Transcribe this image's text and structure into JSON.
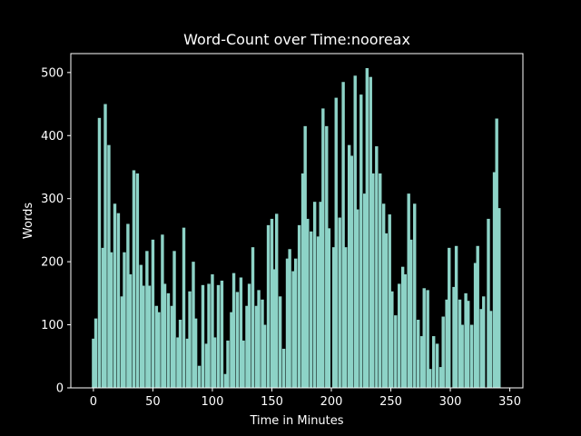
{
  "chart_data": {
    "type": "bar",
    "title": "Word-Count over Time:nooreax",
    "xlabel": "Time in Minutes",
    "ylabel": "Words",
    "color": "#8dd3c7",
    "x": [
      0,
      2,
      5,
      8,
      10,
      13,
      15,
      18,
      21,
      24,
      26,
      29,
      31,
      34,
      37,
      40,
      42,
      45,
      47,
      50,
      53,
      55,
      58,
      60,
      63,
      66,
      68,
      71,
      73,
      76,
      79,
      81,
      84,
      86,
      89,
      92,
      95,
      97,
      100,
      102,
      105,
      108,
      111,
      113,
      116,
      118,
      121,
      124,
      126,
      129,
      131,
      134,
      137,
      139,
      142,
      144,
      147,
      150,
      152,
      154,
      157,
      160,
      163,
      165,
      168,
      170,
      173,
      176,
      178,
      180,
      183,
      186,
      189,
      191,
      193,
      196,
      198,
      202,
      204,
      207,
      210,
      212,
      215,
      217,
      220,
      222,
      225,
      228,
      230,
      233,
      235,
      238,
      241,
      244,
      246,
      249,
      251,
      254,
      257,
      260,
      262,
      265,
      267,
      270,
      273,
      276,
      278,
      281,
      283,
      286,
      289,
      292,
      294,
      297,
      299,
      303,
      305,
      308,
      310,
      313,
      315,
      318,
      321,
      323,
      326,
      328,
      332,
      334,
      337,
      339,
      341
    ],
    "values": [
      78,
      110,
      428,
      222,
      450,
      385,
      215,
      292,
      277,
      145,
      215,
      260,
      180,
      345,
      340,
      195,
      162,
      217,
      162,
      235,
      130,
      120,
      243,
      165,
      150,
      130,
      217,
      80,
      108,
      254,
      78,
      153,
      200,
      110,
      35,
      163,
      70,
      165,
      180,
      80,
      163,
      170,
      22,
      75,
      120,
      182,
      152,
      175,
      75,
      130,
      165,
      223,
      130,
      155,
      140,
      100,
      258,
      268,
      188,
      276,
      145,
      62,
      205,
      220,
      185,
      205,
      258,
      340,
      415,
      268,
      248,
      295,
      240,
      295,
      443,
      415,
      253,
      223,
      460,
      270,
      485,
      223,
      385,
      368,
      495,
      283,
      465,
      308,
      507,
      493,
      340,
      383,
      340,
      292,
      245,
      275,
      153,
      115,
      165,
      192,
      180,
      308,
      235,
      292,
      108,
      82,
      158,
      155,
      30,
      82,
      70,
      33,
      113,
      140,
      222,
      160,
      225,
      140,
      100,
      150,
      138,
      100,
      198,
      225,
      125,
      145,
      268,
      122,
      342,
      427,
      285
    ],
    "xlim": [
      -19,
      361
    ],
    "ylim": [
      0,
      530
    ],
    "xticks": [
      0,
      50,
      100,
      150,
      200,
      250,
      300,
      350
    ],
    "yticks": [
      0,
      100,
      200,
      300,
      400,
      500
    ]
  }
}
